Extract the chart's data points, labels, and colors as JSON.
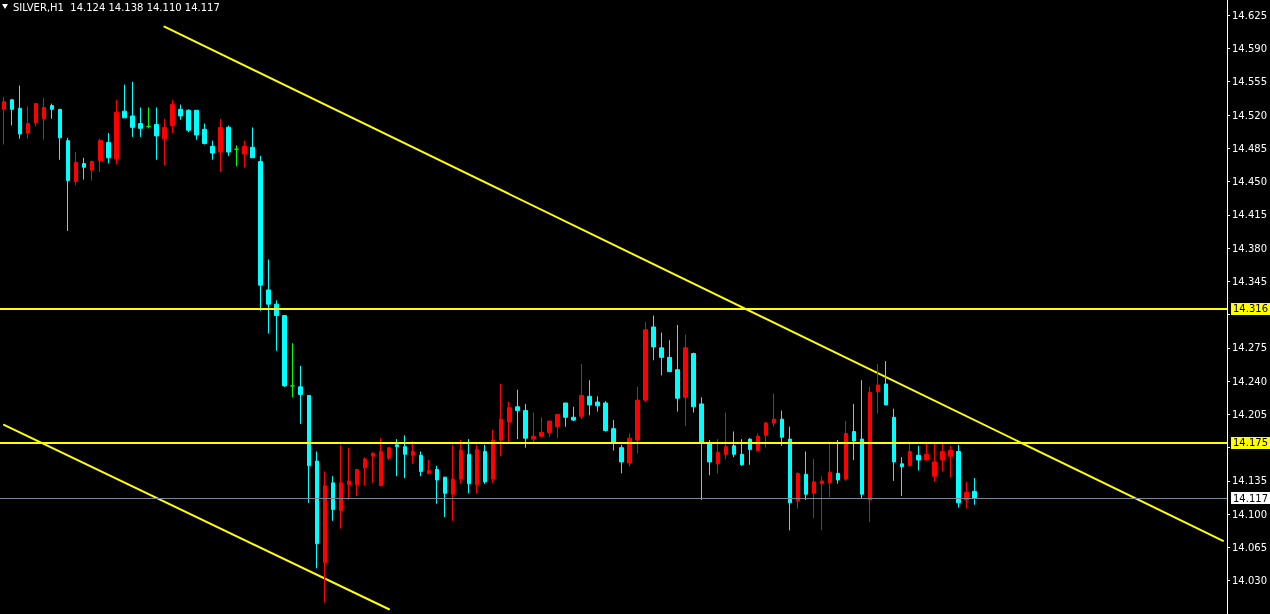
{
  "chart_data": {
    "type": "candlestick",
    "title": "SILVER,H1  14.124 14.138 14.110 14.117",
    "categories": [
      null,
      null,
      null,
      null,
      null,
      null,
      null,
      null,
      null,
      null,
      null,
      null,
      null,
      null,
      null,
      null,
      null,
      null,
      null,
      null,
      null,
      null,
      null,
      null,
      null,
      null,
      null,
      null,
      null,
      null,
      null,
      null,
      null,
      null,
      null,
      null,
      null,
      null,
      null,
      null,
      null,
      null,
      null,
      null,
      null,
      null,
      null,
      null,
      null,
      null,
      null,
      null,
      null,
      null,
      null,
      null,
      null,
      null,
      null,
      null,
      null,
      null,
      null,
      null,
      null,
      null,
      null,
      null,
      null,
      null,
      null,
      null,
      null,
      null,
      null,
      null,
      null,
      null,
      null,
      null,
      null,
      null,
      null,
      null,
      null,
      null,
      null,
      null,
      null,
      null,
      null,
      null,
      null,
      null,
      null,
      null,
      null,
      null,
      null,
      null,
      null,
      null,
      null,
      null,
      null,
      null,
      null,
      null,
      null,
      null,
      null,
      null,
      null,
      null,
      null,
      null,
      null,
      null,
      null,
      null,
      null,
      null,
      null,
      null,
      null,
      null,
      null,
      null,
      null,
      null,
      null,
      null,
      null,
      null,
      null,
      null,
      null,
      null,
      null,
      null,
      null,
      null,
      null,
      null,
      null,
      null,
      null,
      null,
      null,
      null,
      null,
      null,
      null
    ],
    "ohlc": [
      [
        14.526,
        14.539,
        14.489,
        14.534
      ],
      [
        14.536,
        14.537,
        14.509,
        14.526
      ],
      [
        14.527,
        14.551,
        14.495,
        14.5
      ],
      [
        14.501,
        14.529,
        14.495,
        14.511
      ],
      [
        14.512,
        14.532,
        14.508,
        14.532
      ],
      [
        14.516,
        14.538,
        14.494,
        14.528
      ],
      [
        14.53,
        14.532,
        14.516,
        14.526
      ],
      [
        14.526,
        14.526,
        14.473,
        14.496
      ],
      [
        14.493,
        14.496,
        14.398,
        14.451
      ],
      [
        14.45,
        14.481,
        14.446,
        14.47
      ],
      [
        14.469,
        14.475,
        14.452,
        14.465
      ],
      [
        14.462,
        14.472,
        14.451,
        14.471
      ],
      [
        14.472,
        14.495,
        14.46,
        14.493
      ],
      [
        14.491,
        14.501,
        14.469,
        14.475
      ],
      [
        14.474,
        14.536,
        14.468,
        14.523
      ],
      [
        14.524,
        14.552,
        14.517,
        14.517
      ],
      [
        14.519,
        14.555,
        14.497,
        14.507
      ],
      [
        14.511,
        14.528,
        14.497,
        14.506
      ],
      [
        14.508,
        14.528,
        14.506,
        14.508
      ],
      [
        14.51,
        14.528,
        14.473,
        14.498
      ],
      [
        14.495,
        14.516,
        14.467,
        14.507
      ],
      [
        14.509,
        14.536,
        14.501,
        14.531
      ],
      [
        14.526,
        14.531,
        14.515,
        14.519
      ],
      [
        14.525,
        14.526,
        14.502,
        14.504
      ],
      [
        14.525,
        14.525,
        14.494,
        14.499
      ],
      [
        14.505,
        14.511,
        14.489,
        14.49
      ],
      [
        14.487,
        14.493,
        14.473,
        14.48
      ],
      [
        14.481,
        14.516,
        14.46,
        14.507
      ],
      [
        14.507,
        14.509,
        14.477,
        14.481
      ],
      [
        14.484,
        14.488,
        14.466,
        14.484
      ],
      [
        14.479,
        14.493,
        14.465,
        14.487
      ],
      [
        14.486,
        14.507,
        14.475,
        14.475
      ],
      [
        14.471,
        14.477,
        14.314,
        14.341
      ],
      [
        14.336,
        14.368,
        14.29,
        14.321
      ],
      [
        14.321,
        14.325,
        14.272,
        14.309
      ],
      [
        14.309,
        14.309,
        14.234,
        14.235
      ],
      [
        14.235,
        14.28,
        14.223,
        14.235
      ],
      [
        14.234,
        14.256,
        14.195,
        14.226
      ],
      [
        14.225,
        14.225,
        14.112,
        14.151
      ],
      [
        14.156,
        14.166,
        14.043,
        14.069
      ],
      [
        14.049,
        14.145,
        14.007,
        14.13
      ],
      [
        14.133,
        14.14,
        14.093,
        14.105
      ],
      [
        14.104,
        14.173,
        14.085,
        14.133
      ],
      [
        14.131,
        14.17,
        14.115,
        14.135
      ],
      [
        14.131,
        14.147,
        14.119,
        14.147
      ],
      [
        14.149,
        14.16,
        14.13,
        14.158
      ],
      [
        14.161,
        14.165,
        14.133,
        14.164
      ],
      [
        14.13,
        14.18,
        14.13,
        14.166
      ],
      [
        14.159,
        14.171,
        14.157,
        14.17
      ],
      [
        14.173,
        14.179,
        14.14,
        14.171
      ],
      [
        14.171,
        14.183,
        14.138,
        14.163
      ],
      [
        14.162,
        14.177,
        14.153,
        14.166
      ],
      [
        14.162,
        14.166,
        14.14,
        14.145
      ],
      [
        14.143,
        14.157,
        14.142,
        14.146
      ],
      [
        14.147,
        14.151,
        14.111,
        14.136
      ],
      [
        14.139,
        14.139,
        14.097,
        14.122
      ],
      [
        14.121,
        14.173,
        14.093,
        14.137
      ],
      [
        14.137,
        14.178,
        14.132,
        14.167
      ],
      [
        14.163,
        14.179,
        14.122,
        14.132
      ],
      [
        14.131,
        14.173,
        14.122,
        14.168
      ],
      [
        14.166,
        14.173,
        14.132,
        14.134
      ],
      [
        14.137,
        14.189,
        14.133,
        14.178
      ],
      [
        14.178,
        14.237,
        14.161,
        14.2
      ],
      [
        14.197,
        14.218,
        14.176,
        14.212
      ],
      [
        14.213,
        14.231,
        14.179,
        14.209
      ],
      [
        14.209,
        14.216,
        14.17,
        14.18
      ],
      [
        14.179,
        14.207,
        14.176,
        14.182
      ],
      [
        14.182,
        14.202,
        14.181,
        14.186
      ],
      [
        14.186,
        14.198,
        14.181,
        14.198
      ],
      [
        14.192,
        14.205,
        14.18,
        14.205
      ],
      [
        14.217,
        14.217,
        14.192,
        14.202
      ],
      [
        14.202,
        14.213,
        14.198,
        14.199
      ],
      [
        14.203,
        14.258,
        14.2,
        14.225
      ],
      [
        14.224,
        14.241,
        14.204,
        14.215
      ],
      [
        14.218,
        14.224,
        14.208,
        14.214
      ],
      [
        14.217,
        14.219,
        14.187,
        14.188
      ],
      [
        14.19,
        14.199,
        14.167,
        14.176
      ],
      [
        14.17,
        14.173,
        14.143,
        14.155
      ],
      [
        14.154,
        14.185,
        14.15,
        14.18
      ],
      [
        14.178,
        14.234,
        14.164,
        14.22
      ],
      [
        14.22,
        14.302,
        14.218,
        14.294
      ],
      [
        14.297,
        14.309,
        14.262,
        14.276
      ],
      [
        14.275,
        14.291,
        14.246,
        14.265
      ],
      [
        14.265,
        14.283,
        14.25,
        14.25
      ],
      [
        14.252,
        14.299,
        14.208,
        14.222
      ],
      [
        14.223,
        14.289,
        14.193,
        14.275
      ],
      [
        14.269,
        14.27,
        14.207,
        14.213
      ],
      [
        14.216,
        14.223,
        14.115,
        14.176
      ],
      [
        14.174,
        14.178,
        14.141,
        14.155
      ],
      [
        14.153,
        14.179,
        14.143,
        14.165
      ],
      [
        14.163,
        14.207,
        14.158,
        14.171
      ],
      [
        14.172,
        14.187,
        14.16,
        14.163
      ],
      [
        14.163,
        14.179,
        14.151,
        14.152
      ],
      [
        14.179,
        14.18,
        14.152,
        14.168
      ],
      [
        14.167,
        14.185,
        14.167,
        14.182
      ],
      [
        14.183,
        14.197,
        14.17,
        14.196
      ],
      [
        14.196,
        14.227,
        14.192,
        14.2
      ],
      [
        14.2,
        14.209,
        14.172,
        14.181
      ],
      [
        14.179,
        14.192,
        14.083,
        14.112
      ],
      [
        14.114,
        14.144,
        14.106,
        14.143
      ],
      [
        14.142,
        14.166,
        14.115,
        14.121
      ],
      [
        14.122,
        14.158,
        14.096,
        14.134
      ],
      [
        14.132,
        14.14,
        14.083,
        14.135
      ],
      [
        14.133,
        14.174,
        14.118,
        14.144
      ],
      [
        14.143,
        14.178,
        14.132,
        14.136
      ],
      [
        14.137,
        14.198,
        14.135,
        14.185
      ],
      [
        14.187,
        14.216,
        14.157,
        14.177
      ],
      [
        14.179,
        14.241,
        14.117,
        14.121
      ],
      [
        14.115,
        14.234,
        14.092,
        14.228
      ],
      [
        14.229,
        14.258,
        14.206,
        14.236
      ],
      [
        14.237,
        14.261,
        14.215,
        14.215
      ],
      [
        14.202,
        14.211,
        14.135,
        14.155
      ],
      [
        14.153,
        14.16,
        14.119,
        14.15
      ],
      [
        14.151,
        14.174,
        14.15,
        14.166
      ],
      [
        14.162,
        14.172,
        14.146,
        14.157
      ],
      [
        14.157,
        14.174,
        14.157,
        14.163
      ],
      [
        14.14,
        14.174,
        14.134,
        14.155
      ],
      [
        14.157,
        14.174,
        14.145,
        14.166
      ],
      [
        14.161,
        14.172,
        14.139,
        14.167
      ],
      [
        14.166,
        14.173,
        14.107,
        14.112
      ],
      [
        14.115,
        14.134,
        14.106,
        14.123
      ],
      [
        14.124,
        14.138,
        14.11,
        14.117
      ],
      null,
      null,
      null,
      null,
      null,
      null,
      null,
      null,
      null,
      null,
      null,
      null,
      null,
      null,
      null,
      null,
      null,
      null,
      null,
      null,
      null,
      null,
      null,
      null,
      null,
      null,
      null,
      null,
      null,
      null,
      null
    ],
    "colors": [
      "#ff0000",
      "#00ffff",
      "#00ffff",
      "#ff0000",
      "#ff0000",
      "#ff0000",
      "#00ffff",
      "#00ffff",
      "#00ffff",
      "#ff0000",
      "#00ffff",
      "#ff0000",
      "#ff0000",
      "#00ffff",
      "#ff0000",
      "#00ffff",
      "#00ffff",
      "#00ffff",
      "#00ff00",
      "#00ffff",
      "#ff0000",
      "#ff0000",
      "#00ffff",
      "#00ffff",
      "#00ffff",
      "#00ffff",
      "#00ffff",
      "#ff0000",
      "#00ffff",
      "#00ff00",
      "#ff0000",
      "#00ffff",
      "#00ffff",
      "#00ffff",
      "#00ffff",
      "#00ffff",
      "#00ff00",
      "#00ffff",
      "#00ffff",
      "#00ffff",
      "#ff0000",
      "#00ffff",
      "#ff0000",
      "#ff0000",
      "#ff0000",
      "#ff0000",
      "#ff0000",
      "#ff0000",
      "#ff0000",
      "#00ffff",
      "#00ffff",
      "#ff0000",
      "#00ffff",
      "#ff0000",
      "#00ffff",
      "#00ffff",
      "#ff0000",
      "#ff0000",
      "#00ffff",
      "#ff0000",
      "#00ffff",
      "#ff0000",
      "#ff0000",
      "#ff0000",
      "#00ffff",
      "#00ffff",
      "#ff0000",
      "#ff0000",
      "#ff0000",
      "#ff0000",
      "#00ffff",
      "#00ffff",
      "#ff0000",
      "#00ffff",
      "#00ffff",
      "#00ffff",
      "#00ffff",
      "#00ffff",
      "#ff0000",
      "#ff0000",
      "#ff0000",
      "#00ffff",
      "#00ffff",
      "#00ffff",
      "#00ffff",
      "#ff0000",
      "#00ffff",
      "#00ffff",
      "#00ffff",
      "#ff0000",
      "#ff0000",
      "#00ffff",
      "#00ffff",
      "#00ffff",
      "#ff0000",
      "#ff0000",
      "#ff0000",
      "#00ffff",
      "#00ffff",
      "#ff0000",
      "#00ffff",
      "#ff0000",
      "#ff0000",
      "#ff0000",
      "#00ffff",
      "#ff0000",
      "#00ffff",
      "#00ffff",
      "#ff0000",
      "#ff0000",
      "#00ffff",
      "#00ffff",
      "#00ffff",
      "#ff0000",
      "#00ffff",
      "#ff0000",
      "#ff0000",
      "#ff0000",
      "#ff0000",
      "#00ffff",
      "#ff0000",
      "#00ffff",
      null,
      null,
      null,
      null,
      null,
      null,
      null,
      null,
      null,
      null,
      null,
      null,
      null,
      null,
      null,
      null,
      null,
      null,
      null,
      null,
      null,
      null,
      null,
      null,
      null,
      null,
      null,
      null,
      null,
      null,
      null
    ],
    "series": [
      {
        "type": "line",
        "color": "#ffff00",
        "values": [
          null,
          null,
          null,
          null,
          null,
          null,
          null,
          null,
          null,
          null,
          null,
          null,
          null,
          null,
          null,
          null,
          null,
          null,
          null,
          null,
          14.613,
          null,
          null,
          null,
          null,
          null,
          null,
          null,
          null,
          null,
          null,
          null,
          null,
          null,
          null,
          null,
          null,
          null,
          null,
          null,
          null,
          null,
          null,
          null,
          null,
          null,
          null,
          null,
          null,
          null,
          null,
          null,
          null,
          null,
          null,
          null,
          null,
          null,
          null,
          null,
          null,
          null,
          null,
          null,
          null,
          null,
          null,
          null,
          null,
          null,
          null,
          null,
          null,
          null,
          null,
          null,
          null,
          null,
          null,
          null,
          null,
          null,
          null,
          null,
          null,
          null,
          null,
          null,
          null,
          null,
          null,
          null,
          null,
          null,
          null,
          null,
          null,
          null,
          null,
          null,
          null,
          null,
          null,
          null,
          null,
          null,
          null,
          null,
          null,
          null,
          null,
          null,
          null,
          null,
          null,
          null,
          null,
          null,
          null,
          null,
          null,
          null,
          null,
          null,
          null,
          null,
          null,
          null,
          null,
          null,
          null,
          null,
          null,
          null,
          null,
          null,
          null,
          null,
          null,
          null,
          null,
          null,
          null,
          null,
          null,
          null,
          null,
          null,
          null,
          null,
          null,
          null,
          14.072
        ]
      },
      {
        "type": "line",
        "color": "#ffff00",
        "values": [
          14.194,
          null,
          null,
          null,
          null,
          null,
          null,
          null,
          null,
          null,
          null,
          null,
          null,
          null,
          null,
          null,
          null,
          null,
          null,
          null,
          null,
          null,
          null,
          null,
          null,
          null,
          null,
          null,
          null,
          null,
          null,
          null,
          null,
          null,
          null,
          null,
          null,
          null,
          null,
          null,
          null,
          null,
          null,
          null,
          null,
          null,
          null,
          null,
          14.0,
          null,
          null,
          null,
          null,
          null,
          null,
          null,
          null,
          null,
          null,
          null,
          null,
          null,
          null,
          null,
          null,
          null,
          null,
          null,
          null,
          null,
          null,
          null,
          null,
          null,
          null,
          null,
          null,
          null,
          null,
          null,
          null,
          null,
          null,
          null,
          null,
          null,
          null,
          null,
          null,
          null,
          null,
          null,
          null,
          null,
          null,
          null,
          null,
          null,
          null,
          null,
          null,
          null,
          null,
          null,
          null,
          null,
          null,
          null,
          null,
          null,
          null,
          null,
          null,
          null,
          null,
          null,
          null,
          null,
          null,
          null,
          null,
          null,
          null,
          null,
          null,
          null,
          null,
          null,
          null,
          null,
          null,
          null,
          null,
          null,
          null,
          null,
          null,
          null,
          null,
          null,
          null,
          null,
          null,
          null,
          null,
          null,
          null,
          null,
          null,
          null,
          null,
          null,
          null
        ]
      }
    ],
    "ref_lines": [
      {
        "axis": "y",
        "value": 14.316,
        "label": "14.316",
        "color": "#ffff00"
      },
      {
        "axis": "y",
        "value": 14.175,
        "label": "14.175",
        "color": "#ffff00"
      },
      {
        "axis": "y",
        "value": 14.117,
        "label": "14.117",
        "color": "#778899"
      }
    ],
    "ylim": [
      13.995,
      14.641
    ],
    "yticks": [
      {
        "value": 14.03,
        "label": "14.030"
      },
      {
        "value": 14.065,
        "label": "14.065"
      },
      {
        "value": 14.1,
        "label": "14.100"
      },
      {
        "value": 14.135,
        "label": "14.135"
      },
      {
        "value": 14.17,
        "label": null
      },
      {
        "value": 14.205,
        "label": "14.205"
      },
      {
        "value": 14.24,
        "label": "14.240"
      },
      {
        "value": 14.275,
        "label": "14.275"
      },
      {
        "value": 14.31,
        "label": null
      },
      {
        "value": 14.345,
        "label": "14.345"
      },
      {
        "value": 14.38,
        "label": "14.380"
      },
      {
        "value": 14.415,
        "label": "14.415"
      },
      {
        "value": 14.45,
        "label": "14.450"
      },
      {
        "value": 14.485,
        "label": "14.485"
      },
      {
        "value": 14.52,
        "label": "14.520"
      },
      {
        "value": 14.555,
        "label": "14.555"
      },
      {
        "value": 14.59,
        "label": "14.590"
      },
      {
        "value": 14.625,
        "label": "14.625"
      }
    ],
    "tick_labels": "y"
  }
}
